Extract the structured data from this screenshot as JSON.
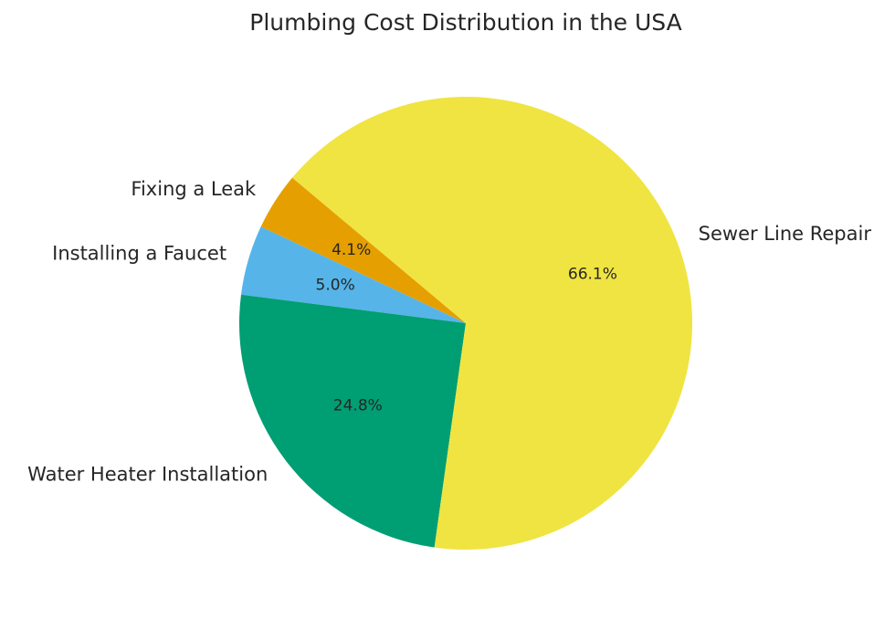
{
  "chart_data": {
    "type": "pie",
    "title": "Plumbing Cost Distribution in the USA",
    "slices": [
      {
        "label": "Fixing a Leak",
        "value": 4.1,
        "pct_label": "4.1%",
        "color": "#E69F00"
      },
      {
        "label": "Installing a Faucet",
        "value": 5.0,
        "pct_label": "5.0%",
        "color": "#56B4E9"
      },
      {
        "label": "Water Heater Installation",
        "value": 24.8,
        "pct_label": "24.8%",
        "color": "#009E73"
      },
      {
        "label": "Sewer Line Repair",
        "value": 66.1,
        "pct_label": "66.1%",
        "color": "#F0E442"
      }
    ],
    "start_angle_deg": 140,
    "direction": "counterclockwise"
  }
}
